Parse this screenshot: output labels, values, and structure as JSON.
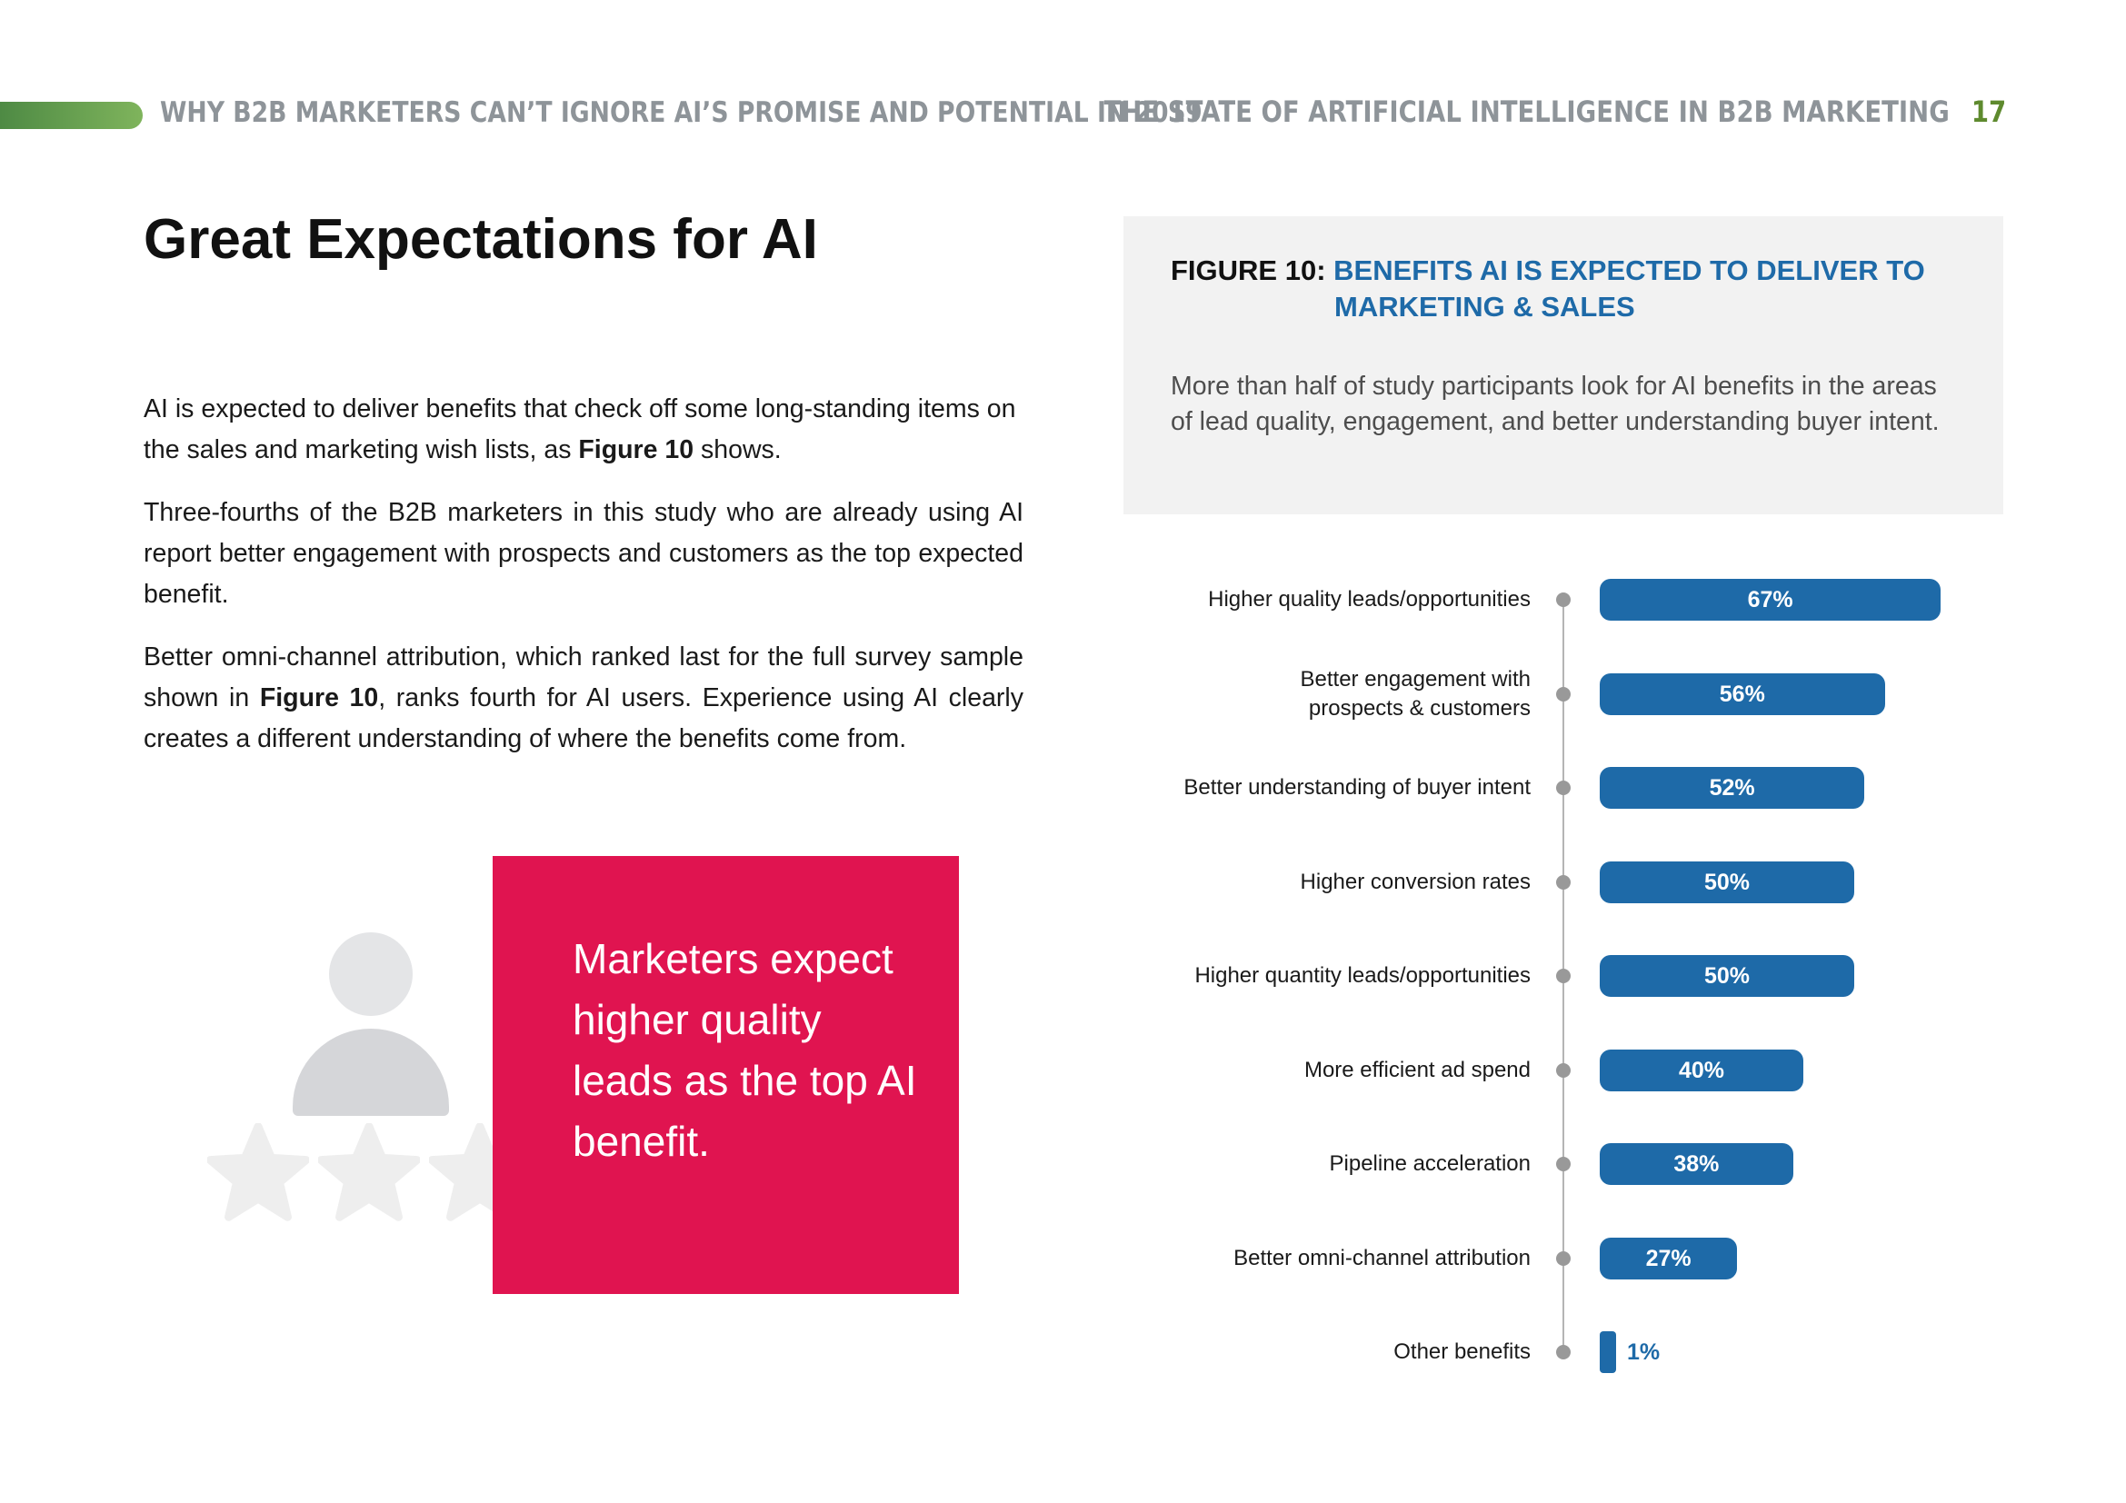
{
  "header": {
    "left_title": "WHY B2B MARKETERS CAN’T IGNORE AI’S PROMISE AND POTENTIAL IN 2019",
    "right_title": "THE STATE OF ARTIFICIAL INTELLIGENCE IN B2B MARKETING",
    "page_number": "17",
    "accent_color": "#6aa050"
  },
  "article": {
    "heading": "Great Expectations for AI",
    "paragraphs": [
      {
        "before": "AI is expected to deliver benefits that check off some long-standing items on the sales and marketing wish lists, as ",
        "bold": "Figure 10",
        "after": " shows."
      },
      {
        "before": "Three-fourths of the B2B marketers in this study who are already using AI report better engagement with prospects and customers as the top expected benefit.",
        "bold": "",
        "after": ""
      },
      {
        "before": "Better omni-channel attribution, which ranked last for the full survey sample shown in ",
        "bold": "Figure 10",
        "after": ", ranks fourth for AI users. Experience using AI clearly creates a different understanding of where the benefits come from."
      }
    ]
  },
  "callout": {
    "text": "Marketers expect higher quality leads as the top AI benefit.",
    "color": "#e01450",
    "illustration": "person-with-stars-icon"
  },
  "figure": {
    "number_label": "FIGURE 10:",
    "title_line1": "BENEFITS AI IS EXPECTED TO DELIVER TO",
    "title_line2": "MARKETING & SALES",
    "description": "More than half of study participants look for AI benefits in the areas of lead quality, engagement, and better understanding buyer intent.",
    "title_color": "#1e6aa8"
  },
  "chart_data": {
    "type": "bar",
    "orientation": "horizontal",
    "categories": [
      "Higher quality leads/opportunities",
      "Better engagement with prospects & customers",
      "Better understanding of buyer intent",
      "Higher conversion rates",
      "Higher quantity leads/opportunities",
      "More efficient ad spend",
      "Pipeline acceleration",
      "Better omni-channel attribution",
      "Other benefits"
    ],
    "values": [
      67,
      56,
      52,
      50,
      50,
      40,
      38,
      27,
      1
    ],
    "value_labels": [
      "67%",
      "56%",
      "52%",
      "50%",
      "50%",
      "40%",
      "38%",
      "27%",
      "1%"
    ],
    "label_lines": [
      [
        "Higher quality leads/opportunities"
      ],
      [
        "Better engagement with",
        "prospects & customers"
      ],
      [
        "Better understanding of buyer intent"
      ],
      [
        "Higher conversion rates"
      ],
      [
        "Higher quantity leads/opportunities"
      ],
      [
        "More efficient ad spend"
      ],
      [
        "Pipeline acceleration"
      ],
      [
        "Better omni-channel attribution"
      ],
      [
        "Other benefits"
      ]
    ],
    "unit": "%",
    "bar_color": "#1e6aa8",
    "xlim": [
      0,
      100
    ],
    "grid": false,
    "legend": "none"
  }
}
